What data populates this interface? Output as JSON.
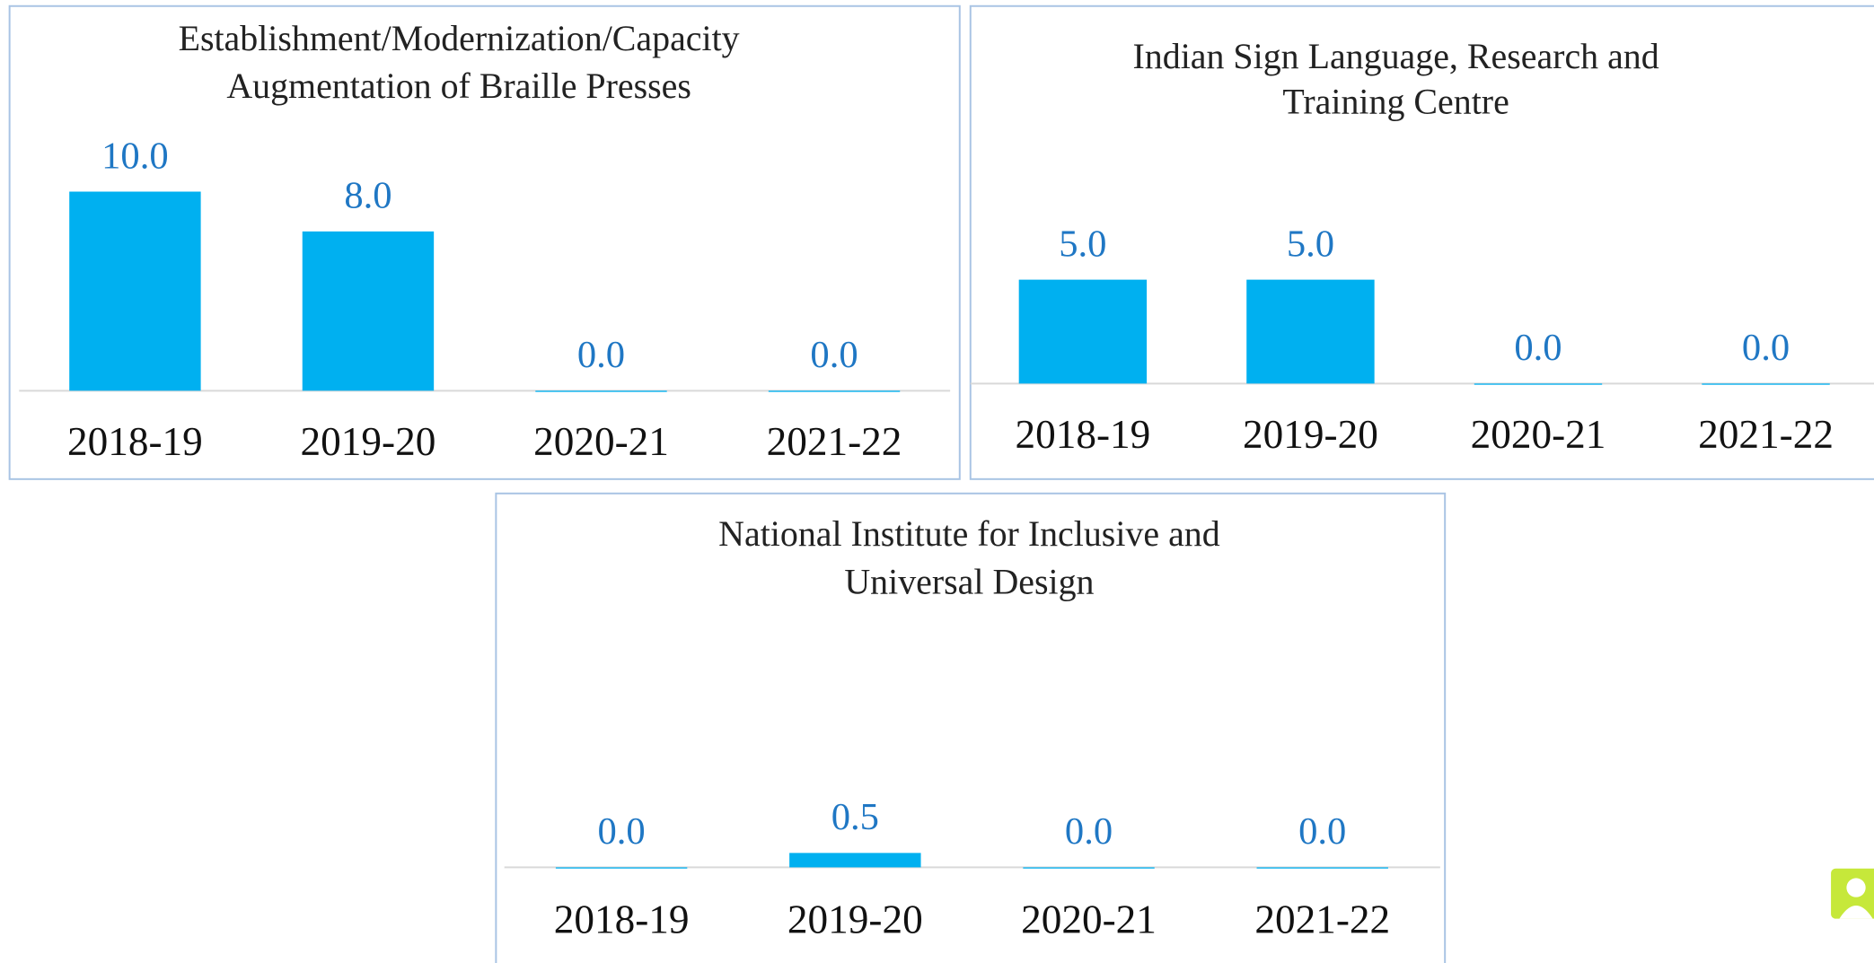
{
  "chart_data": [
    {
      "type": "bar",
      "title": [
        "Establishment/Modernization/Capacity",
        "Augmentation of Braille Presses"
      ],
      "categories": [
        "2018-19",
        "2019-20",
        "2020-21",
        "2021-22"
      ],
      "values": [
        10,
        8,
        0,
        0
      ],
      "value_labels": [
        "10.0",
        "8.0",
        "0.0",
        "0.0"
      ],
      "color": "#00b0f0",
      "ylim": [
        0,
        12
      ]
    },
    {
      "type": "bar",
      "title": [
        "Indian Sign Language, Research and",
        "Training Centre"
      ],
      "categories": [
        "2018-19",
        "2019-20",
        "2020-21",
        "2021-22"
      ],
      "values": [
        5,
        5,
        0,
        0
      ],
      "value_labels": [
        "5.0",
        "5.0",
        "0.0",
        "0.0"
      ],
      "color": "#00b0f0",
      "ylim": [
        0,
        11.5
      ]
    },
    {
      "type": "bar",
      "title": [
        "National Institute for Inclusive and",
        "Universal Design"
      ],
      "categories": [
        "2018-19",
        "2019-20",
        "2020-21",
        "2021-22"
      ],
      "values": [
        0,
        0.5,
        0,
        0
      ],
      "value_labels": [
        "0.0",
        "0.5",
        "0.0",
        "0.0"
      ],
      "color": "#00b0f0",
      "ylim": [
        0,
        8.3
      ]
    }
  ]
}
